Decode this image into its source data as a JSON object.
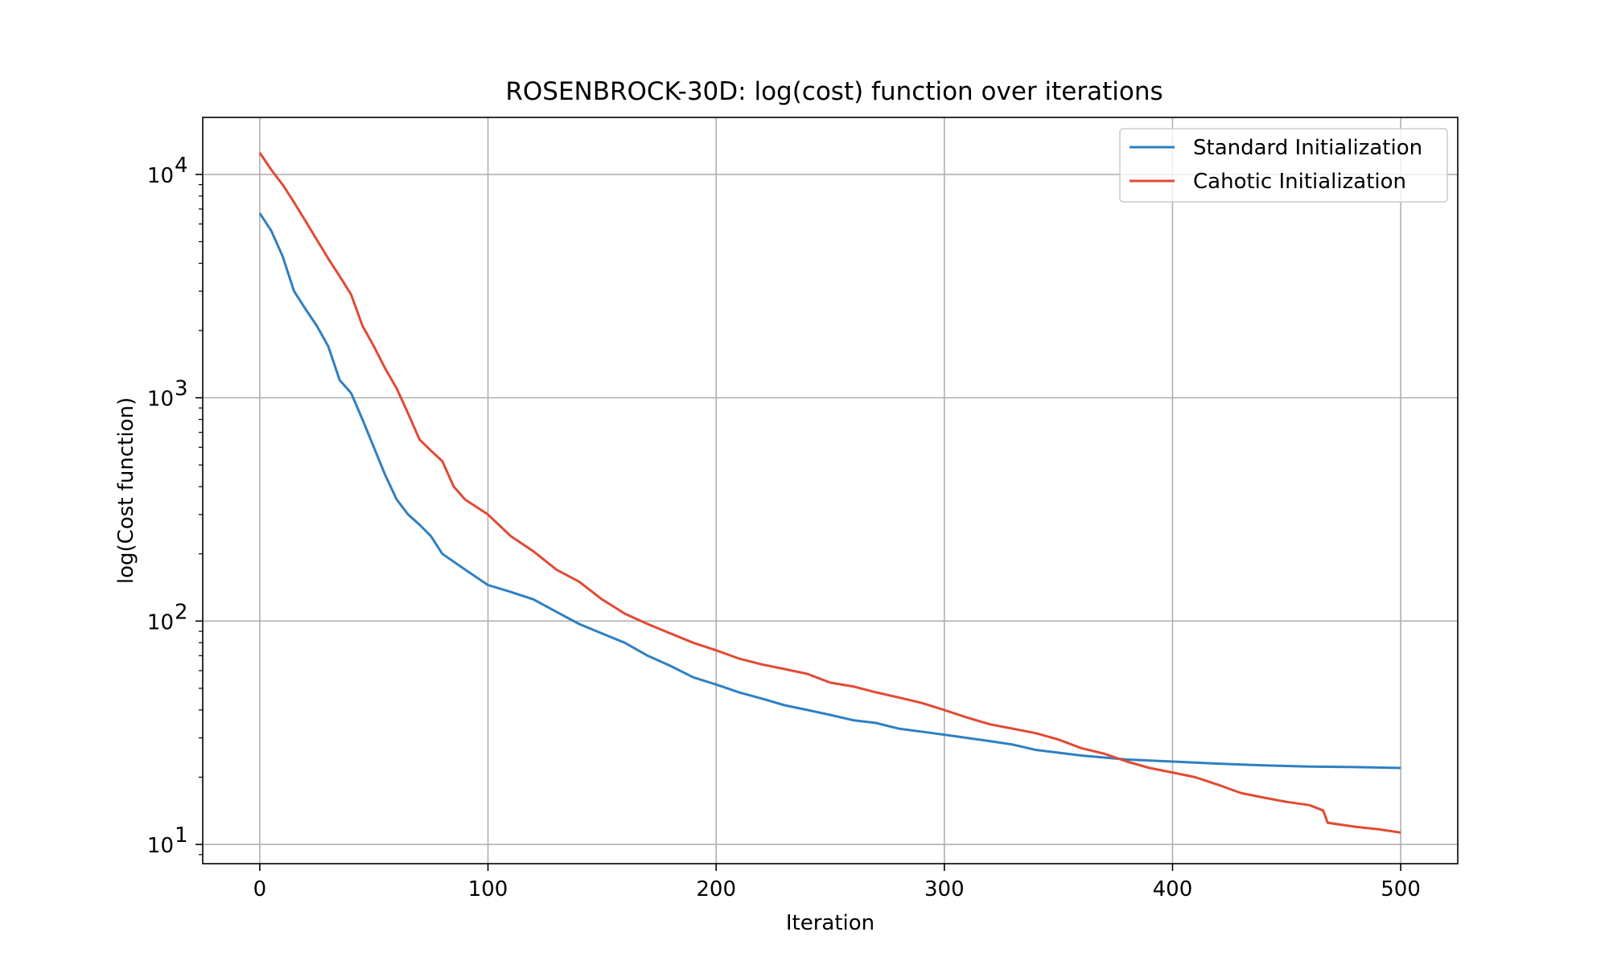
{
  "chart_data": {
    "type": "line",
    "title": "ROSENBROCK-30D: log(cost) function over iterations",
    "xlabel": "Iteration",
    "ylabel": "log(Cost function)",
    "yscale": "log",
    "xlim": [
      -25,
      525
    ],
    "ylim": [
      8.2,
      18000
    ],
    "xticks": [
      0,
      100,
      200,
      300,
      400,
      500
    ],
    "xtick_labels": [
      "0",
      "100",
      "200",
      "300",
      "400",
      "500"
    ],
    "yticks": [
      10,
      100,
      1000,
      10000
    ],
    "ytick_labels": [
      {
        "base": "10",
        "exp": "1"
      },
      {
        "base": "10",
        "exp": "2"
      },
      {
        "base": "10",
        "exp": "3"
      },
      {
        "base": "10",
        "exp": "4"
      }
    ],
    "grid": true,
    "legend_position": "upper right",
    "series": [
      {
        "name": "Standard Initialization",
        "color": "#2e80c3",
        "points": [
          [
            0,
            6700
          ],
          [
            5,
            5600
          ],
          [
            10,
            4300
          ],
          [
            15,
            3000
          ],
          [
            20,
            2500
          ],
          [
            25,
            2100
          ],
          [
            30,
            1700
          ],
          [
            35,
            1200
          ],
          [
            40,
            1050
          ],
          [
            45,
            800
          ],
          [
            50,
            600
          ],
          [
            55,
            450
          ],
          [
            60,
            350
          ],
          [
            65,
            300
          ],
          [
            70,
            270
          ],
          [
            75,
            240
          ],
          [
            80,
            200
          ],
          [
            90,
            170
          ],
          [
            100,
            145
          ],
          [
            110,
            135
          ],
          [
            120,
            125
          ],
          [
            130,
            110
          ],
          [
            140,
            97
          ],
          [
            150,
            88
          ],
          [
            160,
            80
          ],
          [
            170,
            70
          ],
          [
            180,
            63
          ],
          [
            190,
            56
          ],
          [
            200,
            52
          ],
          [
            210,
            48
          ],
          [
            220,
            45
          ],
          [
            230,
            42
          ],
          [
            240,
            40
          ],
          [
            250,
            38
          ],
          [
            260,
            36
          ],
          [
            270,
            35
          ],
          [
            280,
            33
          ],
          [
            290,
            32
          ],
          [
            300,
            31
          ],
          [
            320,
            29
          ],
          [
            330,
            28
          ],
          [
            340,
            26.5
          ],
          [
            360,
            25
          ],
          [
            380,
            24
          ],
          [
            400,
            23.5
          ],
          [
            420,
            23
          ],
          [
            440,
            22.6
          ],
          [
            460,
            22.3
          ],
          [
            480,
            22.2
          ],
          [
            500,
            22
          ]
        ]
      },
      {
        "name": "Cahotic Initialization",
        "color": "#e24a33",
        "points": [
          [
            0,
            12500
          ],
          [
            5,
            10500
          ],
          [
            10,
            9000
          ],
          [
            15,
            7500
          ],
          [
            20,
            6200
          ],
          [
            25,
            5100
          ],
          [
            30,
            4200
          ],
          [
            35,
            3500
          ],
          [
            40,
            2900
          ],
          [
            45,
            2100
          ],
          [
            50,
            1700
          ],
          [
            55,
            1350
          ],
          [
            60,
            1100
          ],
          [
            65,
            850
          ],
          [
            70,
            650
          ],
          [
            75,
            580
          ],
          [
            80,
            520
          ],
          [
            85,
            400
          ],
          [
            90,
            350
          ],
          [
            100,
            300
          ],
          [
            110,
            240
          ],
          [
            120,
            205
          ],
          [
            130,
            170
          ],
          [
            140,
            150
          ],
          [
            150,
            125
          ],
          [
            160,
            108
          ],
          [
            170,
            97
          ],
          [
            180,
            88
          ],
          [
            190,
            80
          ],
          [
            200,
            74
          ],
          [
            210,
            68
          ],
          [
            220,
            64
          ],
          [
            230,
            61
          ],
          [
            240,
            58
          ],
          [
            250,
            53
          ],
          [
            260,
            51
          ],
          [
            270,
            48
          ],
          [
            280,
            45.5
          ],
          [
            290,
            43
          ],
          [
            300,
            40
          ],
          [
            310,
            37
          ],
          [
            320,
            34.5
          ],
          [
            330,
            33
          ],
          [
            340,
            31.5
          ],
          [
            350,
            29.5
          ],
          [
            360,
            27
          ],
          [
            370,
            25.5
          ],
          [
            380,
            23.5
          ],
          [
            390,
            22
          ],
          [
            400,
            21
          ],
          [
            410,
            20
          ],
          [
            420,
            18.5
          ],
          [
            430,
            17
          ],
          [
            440,
            16.2
          ],
          [
            450,
            15.5
          ],
          [
            460,
            15
          ],
          [
            466,
            14.2
          ],
          [
            468,
            12.5
          ],
          [
            480,
            12
          ],
          [
            490,
            11.7
          ],
          [
            500,
            11.3
          ]
        ]
      }
    ]
  }
}
